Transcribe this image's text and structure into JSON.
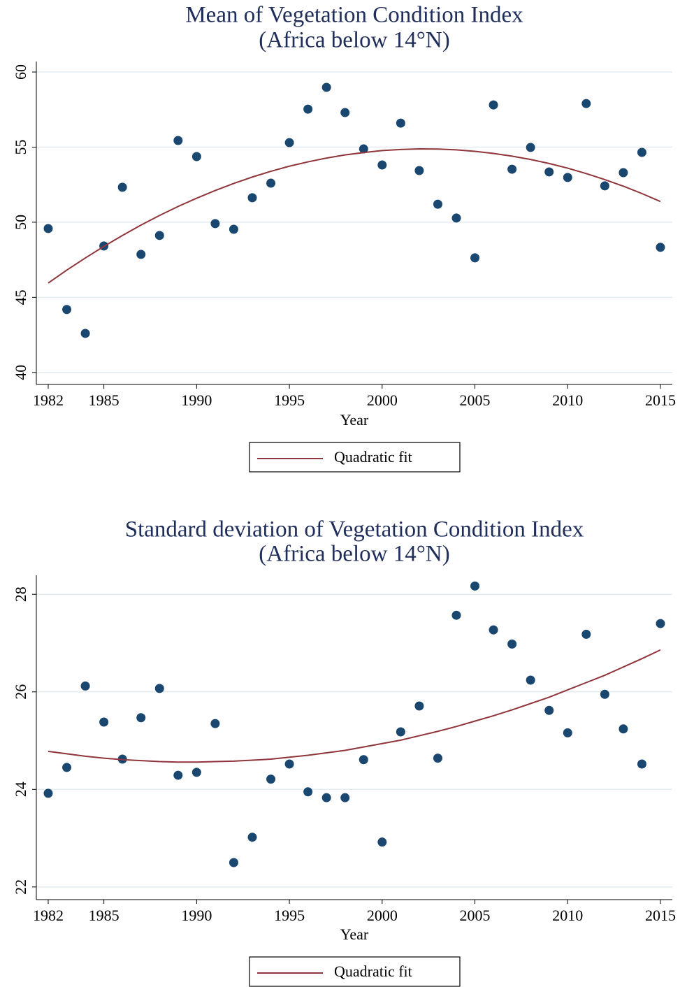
{
  "chart_data": [
    {
      "type": "scatter",
      "title": "Mean of Vegetation Condition Index",
      "subtitle": "(Africa below 14°N)",
      "x_label": "Year",
      "x": [
        1982,
        1983,
        1984,
        1985,
        1986,
        1987,
        1988,
        1989,
        1990,
        1991,
        1992,
        1993,
        1994,
        1995,
        1996,
        1997,
        1998,
        1999,
        2000,
        2001,
        2002,
        2003,
        2004,
        2005,
        2006,
        2007,
        2008,
        2009,
        2010,
        2011,
        2012,
        2013,
        2014,
        2015
      ],
      "series": [
        {
          "color": "#1a476f",
          "mode": "markers",
          "values": [
            49.58,
            44.19,
            42.6,
            48.42,
            52.33,
            47.86,
            49.12,
            55.44,
            54.37,
            49.91,
            49.53,
            51.63,
            52.6,
            55.3,
            57.53,
            58.98,
            57.3,
            54.88,
            53.81,
            56.6,
            53.44,
            51.2,
            50.28,
            47.63,
            57.81,
            53.53,
            54.98,
            53.35,
            52.98,
            57.9,
            52.42,
            53.3,
            54.65,
            48.33
          ]
        },
        {
          "name": "Quadratic fit",
          "color": "#90353b",
          "mode": "line",
          "values": [
            45.95,
            46.81,
            47.62,
            48.39,
            49.12,
            49.81,
            50.45,
            51.05,
            51.6,
            52.11,
            52.58,
            53.01,
            53.39,
            53.73,
            54.02,
            54.27,
            54.48,
            54.64,
            54.77,
            54.84,
            54.88,
            54.87,
            54.82,
            54.72,
            54.58,
            54.4,
            54.18,
            53.91,
            53.6,
            53.24,
            52.84,
            52.4,
            51.91,
            51.38
          ]
        }
      ],
      "xlim": [
        1981.36,
        2015.64
      ],
      "xticks": [
        1982,
        1985,
        1990,
        1995,
        2000,
        2005,
        2010,
        2015
      ],
      "ylim": [
        39.2,
        60.7
      ],
      "yticks": [
        40,
        45,
        50,
        55,
        60
      ],
      "grid": true
    },
    {
      "type": "scatter",
      "title": "Standard deviation of Vegetation Condition Index",
      "subtitle": "(Africa below 14°N)",
      "x_label": "Year",
      "x": [
        1982,
        1983,
        1984,
        1985,
        1986,
        1987,
        1988,
        1989,
        1990,
        1991,
        1992,
        1993,
        1994,
        1995,
        1996,
        1997,
        1998,
        1999,
        2000,
        2001,
        2002,
        2003,
        2004,
        2005,
        2006,
        2007,
        2008,
        2009,
        2010,
        2011,
        2012,
        2013,
        2014,
        2015
      ],
      "series": [
        {
          "color": "#1a476f",
          "mode": "markers",
          "values": [
            23.92,
            24.45,
            26.12,
            25.38,
            24.62,
            25.47,
            26.07,
            24.29,
            24.35,
            25.35,
            22.5,
            23.02,
            24.21,
            24.52,
            23.95,
            23.83,
            23.83,
            24.61,
            22.92,
            25.18,
            25.71,
            24.64,
            27.57,
            28.17,
            27.27,
            26.98,
            26.24,
            25.62,
            25.16,
            27.18,
            25.95,
            25.24,
            24.52,
            27.4
          ]
        },
        {
          "name": "Quadratic fit",
          "color": "#90353b",
          "mode": "line",
          "values": [
            24.78,
            24.73,
            24.68,
            24.64,
            24.61,
            24.59,
            24.57,
            24.56,
            24.56,
            24.57,
            24.58,
            24.6,
            24.62,
            24.66,
            24.7,
            24.75,
            24.8,
            24.87,
            24.94,
            25.01,
            25.1,
            25.19,
            25.29,
            25.4,
            25.51,
            25.63,
            25.76,
            25.89,
            26.04,
            26.19,
            26.34,
            26.51,
            26.68,
            26.86
          ]
        }
      ],
      "xlim": [
        1981.36,
        2015.64
      ],
      "xticks": [
        1982,
        1985,
        1990,
        1995,
        2000,
        2005,
        2010,
        2015
      ],
      "ylim": [
        21.74,
        28.39
      ],
      "yticks": [
        22,
        24,
        26,
        28
      ],
      "grid": true
    }
  ]
}
